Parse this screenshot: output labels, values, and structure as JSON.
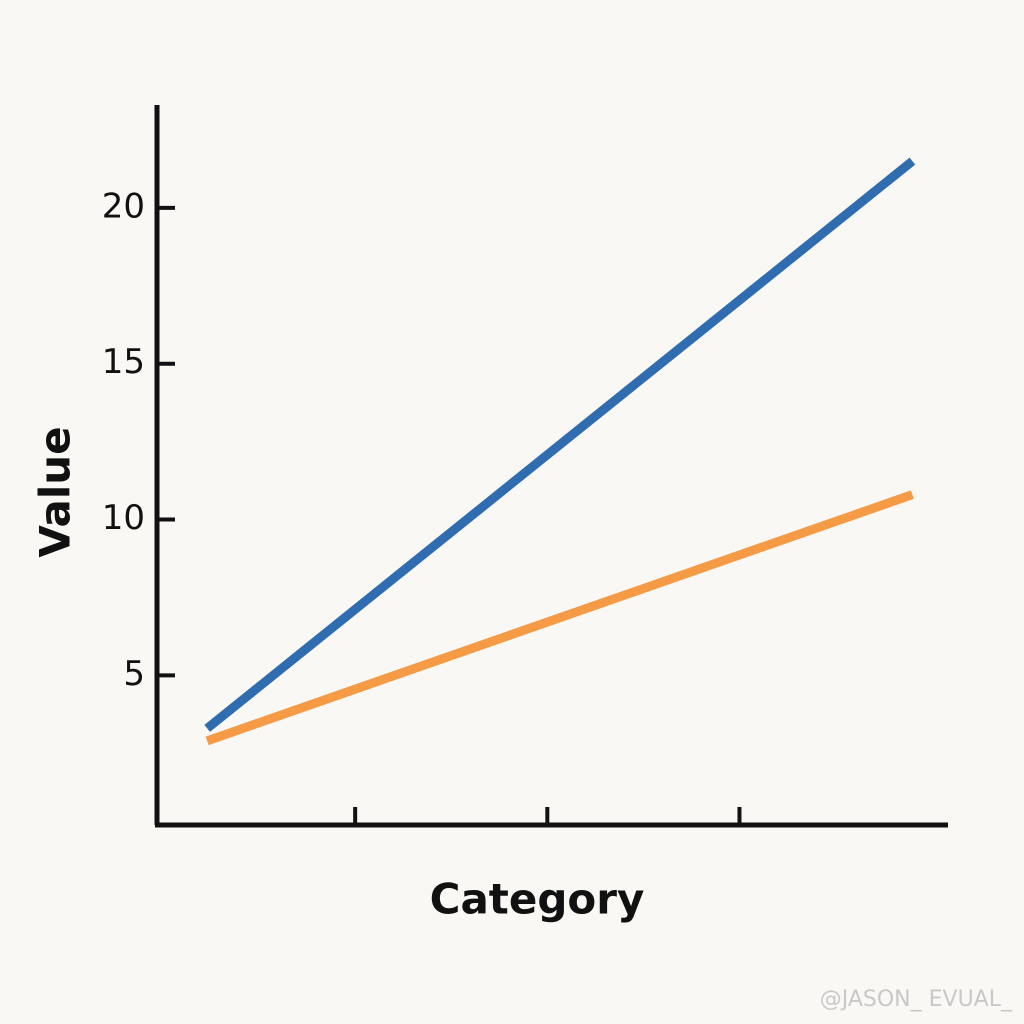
{
  "chart_data": {
    "type": "line",
    "ylabel": "Value",
    "xlabel": "Category",
    "x": [
      0.23,
      3.9
    ],
    "xlim": [
      0,
      4.08
    ],
    "xticks": [
      1,
      2,
      3
    ],
    "xtick_labels": false,
    "ylim": [
      0.2,
      23.3
    ],
    "yticks": [
      5,
      10,
      15,
      20
    ],
    "series": [
      {
        "color": "#2f6db0",
        "values": [
          3.3,
          21.5
        ]
      },
      {
        "color": "#f59a45",
        "values": [
          2.9,
          10.8
        ]
      }
    ],
    "watermark": "@JASON_  EVUAL_"
  }
}
